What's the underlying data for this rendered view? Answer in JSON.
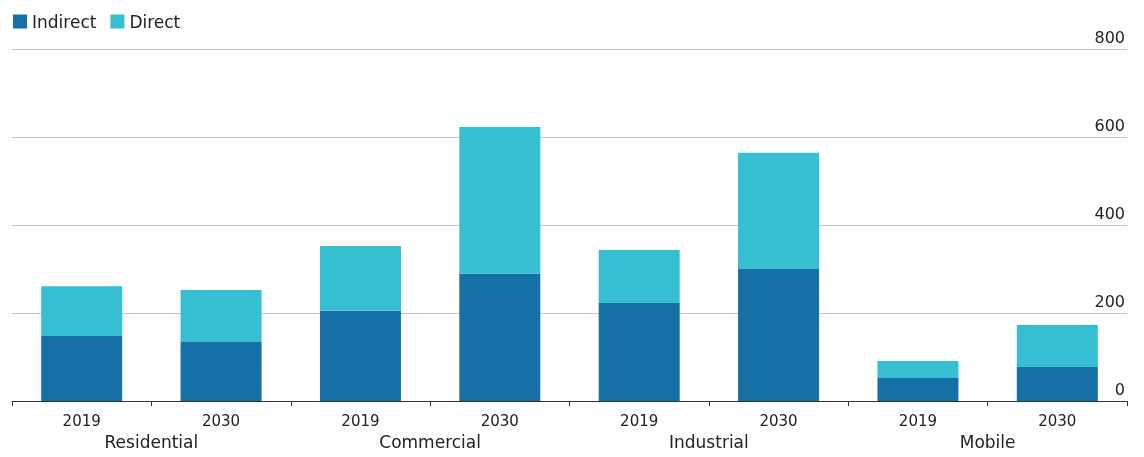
{
  "chart_data": {
    "type": "bar",
    "stacked": true,
    "categories": [
      "2019",
      "2030",
      "2019",
      "2030",
      "2019",
      "2030",
      "2019",
      "2030"
    ],
    "series": [
      {
        "name": "Indirect",
        "color": "#1470a5",
        "values": [
          148,
          134,
          205,
          289,
          223,
          300,
          52,
          77
        ]
      },
      {
        "name": "Direct",
        "color": "#35bfd0",
        "values": [
          113,
          118,
          147,
          334,
          120,
          264,
          39,
          96
        ]
      }
    ],
    "ylim": [
      0,
      800
    ],
    "yticks": [
      0,
      200,
      400,
      600,
      800
    ],
    "grid": "y",
    "legend": "top left",
    "annotations": [
      "Residential",
      "Commercial",
      "Industrial",
      "Mobile"
    ]
  }
}
